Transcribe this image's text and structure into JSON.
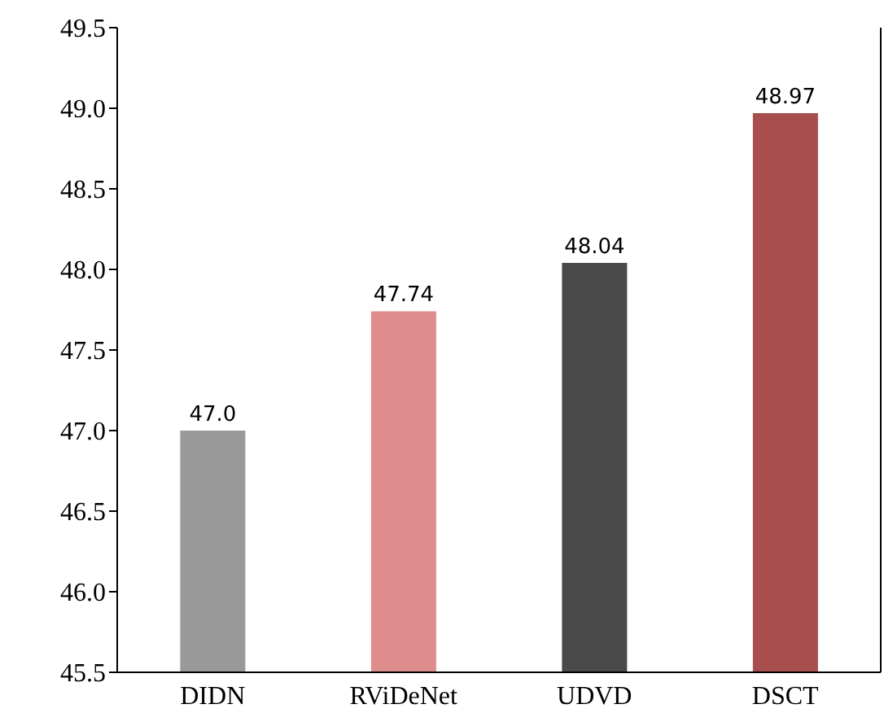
{
  "chart_data": {
    "type": "bar",
    "categories": [
      "DIDN",
      "RViDeNet",
      "UDVD",
      "DSCT"
    ],
    "values": [
      47.0,
      47.74,
      48.04,
      48.97
    ],
    "colors": [
      "#999999",
      "#de8c8c",
      "#4a4a4a",
      "#a84e4e"
    ],
    "value_labels": [
      "47.0",
      "47.74",
      "48.04",
      "48.97"
    ],
    "ylim": [
      45.5,
      49.5
    ],
    "yticks": [
      45.5,
      {
        "value": 46,
        "label": "46.0"
      },
      46.5,
      {
        "value": 47,
        "label": "47.0"
      },
      47.5,
      {
        "value": 48,
        "label": "48.0"
      },
      48.5,
      {
        "value": 49,
        "label": "49.0"
      },
      49.5
    ],
    "grid": false
  }
}
